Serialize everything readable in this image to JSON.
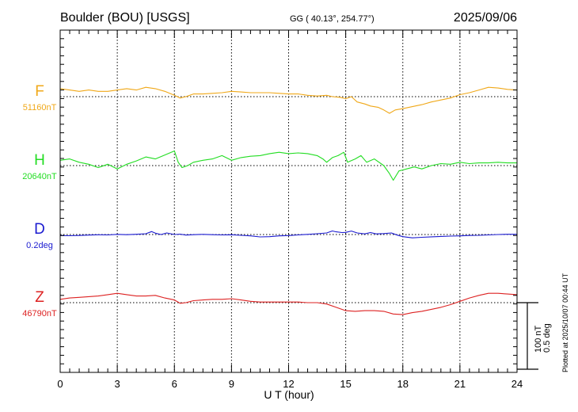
{
  "header": {
    "station": "Boulder (BOU)  [USGS]",
    "coords": "GG ( 40.13°, 254.77°)",
    "date": "2025/09/06",
    "plotted": "Plotted at 2025/10/07 00:44 UT"
  },
  "chart_data": {
    "type": "line",
    "xlabel": "U T (hour)",
    "xlim": [
      0,
      24
    ],
    "xticks": [
      "0",
      "3",
      "6",
      "9",
      "12",
      "15",
      "18",
      "21",
      "24"
    ],
    "scale_bar": {
      "nT_label": "100 nT",
      "deg_label": "0.5 deg",
      "nT": 100,
      "deg": 0.5
    },
    "series": [
      {
        "name": "F",
        "baseline_label": "51160nT",
        "baseline": 51160,
        "unit": "nT",
        "color": "#f0a818",
        "points": [
          [
            0,
            51172
          ],
          [
            0.5,
            51170
          ],
          [
            1,
            51168
          ],
          [
            1.5,
            51170
          ],
          [
            2,
            51168
          ],
          [
            2.5,
            51168
          ],
          [
            3,
            51170
          ],
          [
            3.5,
            51172
          ],
          [
            4,
            51170
          ],
          [
            4.5,
            51174
          ],
          [
            5,
            51172
          ],
          [
            5.5,
            51168
          ],
          [
            6,
            51162
          ],
          [
            6.3,
            51158
          ],
          [
            6.6,
            51160
          ],
          [
            7,
            51164
          ],
          [
            7.5,
            51164
          ],
          [
            8,
            51165
          ],
          [
            8.5,
            51166
          ],
          [
            9,
            51168
          ],
          [
            9.5,
            51167
          ],
          [
            10,
            51166
          ],
          [
            10.5,
            51166
          ],
          [
            11,
            51166
          ],
          [
            11.5,
            51165
          ],
          [
            12,
            51164
          ],
          [
            12.5,
            51164
          ],
          [
            13,
            51162
          ],
          [
            13.5,
            51161
          ],
          [
            14,
            51162
          ],
          [
            14.3,
            51160
          ],
          [
            14.7,
            51159
          ],
          [
            15,
            51157
          ],
          [
            15.3,
            51160
          ],
          [
            15.6,
            51152
          ],
          [
            16,
            51149
          ],
          [
            16.3,
            51146
          ],
          [
            16.7,
            51144
          ],
          [
            17,
            51140
          ],
          [
            17.3,
            51135
          ],
          [
            17.6,
            51140
          ],
          [
            18,
            51142
          ],
          [
            18.5,
            51145
          ],
          [
            19,
            51148
          ],
          [
            19.5,
            51152
          ],
          [
            20,
            51155
          ],
          [
            20.5,
            51158
          ],
          [
            21,
            51163
          ],
          [
            21.5,
            51166
          ],
          [
            22,
            51170
          ],
          [
            22.5,
            51174
          ],
          [
            23,
            51173
          ],
          [
            23.5,
            51171
          ],
          [
            24,
            51170
          ]
        ]
      },
      {
        "name": "H",
        "baseline_label": "20640nT",
        "baseline": 20640,
        "unit": "nT",
        "color": "#22dd22",
        "points": [
          [
            0,
            20648
          ],
          [
            0.5,
            20650
          ],
          [
            1,
            20645
          ],
          [
            1.5,
            20642
          ],
          [
            2,
            20637
          ],
          [
            2.5,
            20642
          ],
          [
            3,
            20635
          ],
          [
            3.5,
            20642
          ],
          [
            4,
            20647
          ],
          [
            4.5,
            20653
          ],
          [
            5,
            20650
          ],
          [
            5.5,
            20656
          ],
          [
            6,
            20662
          ],
          [
            6.2,
            20645
          ],
          [
            6.4,
            20637
          ],
          [
            6.7,
            20640
          ],
          [
            7,
            20645
          ],
          [
            7.5,
            20648
          ],
          [
            8,
            20650
          ],
          [
            8.5,
            20655
          ],
          [
            9,
            20648
          ],
          [
            9.5,
            20652
          ],
          [
            10,
            20654
          ],
          [
            10.5,
            20655
          ],
          [
            11,
            20658
          ],
          [
            11.5,
            20660
          ],
          [
            12,
            20658
          ],
          [
            12.5,
            20659
          ],
          [
            13,
            20658
          ],
          [
            13.5,
            20655
          ],
          [
            13.8,
            20650
          ],
          [
            14,
            20645
          ],
          [
            14.3,
            20652
          ],
          [
            14.6,
            20655
          ],
          [
            14.9,
            20660
          ],
          [
            15.1,
            20645
          ],
          [
            15.5,
            20650
          ],
          [
            15.8,
            20655
          ],
          [
            16.1,
            20645
          ],
          [
            16.5,
            20650
          ],
          [
            17,
            20640
          ],
          [
            17.3,
            20628
          ],
          [
            17.5,
            20618
          ],
          [
            17.8,
            20632
          ],
          [
            18.2,
            20635
          ],
          [
            18.6,
            20638
          ],
          [
            19,
            20635
          ],
          [
            19.5,
            20640
          ],
          [
            20,
            20643
          ],
          [
            20.5,
            20642
          ],
          [
            21,
            20645
          ],
          [
            21.5,
            20643
          ],
          [
            22,
            20644
          ],
          [
            22.5,
            20644
          ],
          [
            23,
            20645
          ],
          [
            23.5,
            20644
          ],
          [
            24,
            20644
          ]
        ]
      },
      {
        "name": "D",
        "baseline_label": "0.2deg",
        "baseline": 0.2,
        "unit": "deg",
        "color": "#1a1ad0",
        "points": [
          [
            0,
            0.192
          ],
          [
            0.5,
            0.191
          ],
          [
            1,
            0.193
          ],
          [
            1.5,
            0.196
          ],
          [
            2,
            0.198
          ],
          [
            2.5,
            0.197
          ],
          [
            3,
            0.201
          ],
          [
            3.5,
            0.199
          ],
          [
            4,
            0.202
          ],
          [
            4.5,
            0.206
          ],
          [
            4.8,
            0.222
          ],
          [
            5,
            0.21
          ],
          [
            5.3,
            0.2
          ],
          [
            5.6,
            0.212
          ],
          [
            6,
            0.2
          ],
          [
            6.3,
            0.203
          ],
          [
            6.6,
            0.196
          ],
          [
            7,
            0.199
          ],
          [
            7.5,
            0.201
          ],
          [
            8,
            0.199
          ],
          [
            8.5,
            0.197
          ],
          [
            9,
            0.198
          ],
          [
            9.5,
            0.194
          ],
          [
            10,
            0.19
          ],
          [
            10.5,
            0.182
          ],
          [
            11,
            0.184
          ],
          [
            11.5,
            0.19
          ],
          [
            12,
            0.192
          ],
          [
            12.5,
            0.197
          ],
          [
            13,
            0.201
          ],
          [
            13.5,
            0.206
          ],
          [
            14,
            0.212
          ],
          [
            14.3,
            0.227
          ],
          [
            14.5,
            0.22
          ],
          [
            14.8,
            0.215
          ],
          [
            15,
            0.216
          ],
          [
            15.3,
            0.226
          ],
          [
            15.6,
            0.212
          ],
          [
            16,
            0.205
          ],
          [
            16.3,
            0.215
          ],
          [
            16.6,
            0.205
          ],
          [
            17,
            0.207
          ],
          [
            17.4,
            0.212
          ],
          [
            17.7,
            0.196
          ],
          [
            18,
            0.184
          ],
          [
            18.5,
            0.175
          ],
          [
            19,
            0.179
          ],
          [
            19.5,
            0.183
          ],
          [
            20,
            0.186
          ],
          [
            20.5,
            0.188
          ],
          [
            21,
            0.19
          ],
          [
            21.5,
            0.193
          ],
          [
            22,
            0.194
          ],
          [
            22.5,
            0.197
          ],
          [
            23,
            0.2
          ],
          [
            23.5,
            0.202
          ],
          [
            24,
            0.202
          ]
        ]
      },
      {
        "name": "Z",
        "baseline_label": "46790nT",
        "baseline": 46790,
        "unit": "nT",
        "color": "#dd2222",
        "points": [
          [
            0,
            46795
          ],
          [
            0.5,
            46797
          ],
          [
            1,
            46798
          ],
          [
            1.5,
            46799
          ],
          [
            2,
            46800
          ],
          [
            2.5,
            46802
          ],
          [
            3,
            46804
          ],
          [
            3.5,
            46802
          ],
          [
            4,
            46800
          ],
          [
            4.5,
            46800
          ],
          [
            5,
            46801
          ],
          [
            5.5,
            46797
          ],
          [
            6,
            46794
          ],
          [
            6.3,
            46789
          ],
          [
            6.6,
            46790
          ],
          [
            7,
            46793
          ],
          [
            7.5,
            46794
          ],
          [
            8,
            46795
          ],
          [
            8.5,
            46795
          ],
          [
            9,
            46796
          ],
          [
            9.5,
            46794
          ],
          [
            10,
            46792
          ],
          [
            10.5,
            46791
          ],
          [
            11,
            46791
          ],
          [
            11.5,
            46791
          ],
          [
            12,
            46791
          ],
          [
            12.5,
            46791
          ],
          [
            13,
            46790
          ],
          [
            13.5,
            46790
          ],
          [
            14,
            46788
          ],
          [
            14.5,
            46783
          ],
          [
            15,
            46778
          ],
          [
            15.5,
            46777
          ],
          [
            16,
            46778
          ],
          [
            16.5,
            46778
          ],
          [
            17,
            46777
          ],
          [
            17.5,
            46773
          ],
          [
            18,
            46772
          ],
          [
            18.5,
            46775
          ],
          [
            19,
            46777
          ],
          [
            19.5,
            46780
          ],
          [
            20,
            46783
          ],
          [
            20.5,
            46787
          ],
          [
            21,
            46792
          ],
          [
            21.5,
            46797
          ],
          [
            22,
            46801
          ],
          [
            22.5,
            46804
          ],
          [
            23,
            46804
          ],
          [
            23.5,
            46803
          ],
          [
            24,
            46802
          ]
        ]
      }
    ]
  }
}
